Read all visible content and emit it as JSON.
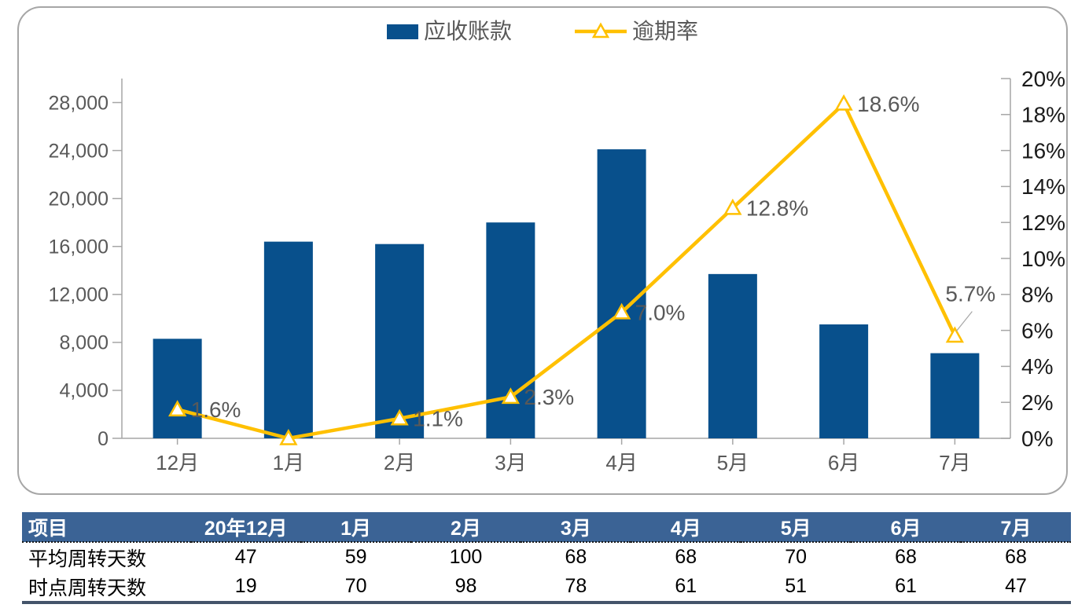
{
  "legend": {
    "bar_label": "应收账款",
    "line_label": "逾期率"
  },
  "chart_data": {
    "type": "combo",
    "title": "",
    "categories": [
      "12月",
      "1月",
      "2月",
      "3月",
      "4月",
      "5月",
      "6月",
      "7月"
    ],
    "series": [
      {
        "name": "应收账款",
        "type": "bar",
        "axis": "left",
        "values": [
          8300,
          16400,
          16200,
          18000,
          24100,
          13700,
          9500,
          7100
        ]
      },
      {
        "name": "逾期率",
        "type": "line",
        "axis": "right",
        "values": [
          1.6,
          0.0,
          1.1,
          2.3,
          7.0,
          12.8,
          18.6,
          5.7
        ],
        "point_labels": [
          "1.6%",
          "",
          "1.1%",
          "2.3%",
          "7.0%",
          "12.8%",
          "18.6%",
          "5.7%"
        ],
        "label_side": [
          "right",
          "none",
          "right",
          "right",
          "right",
          "right",
          "right",
          "above-leader"
        ]
      }
    ],
    "left_axis": {
      "min": 0,
      "max": 30000,
      "tick_step": 4000,
      "tick_labels": [
        "0",
        "4,000",
        "8,000",
        "12,000",
        "16,000",
        "20,000",
        "24,000",
        "28,000"
      ]
    },
    "right_axis": {
      "min": 0,
      "max": 20,
      "tick_step": 2,
      "tick_labels": [
        "0%",
        "2%",
        "4%",
        "6%",
        "8%",
        "10%",
        "12%",
        "14%",
        "16%",
        "18%",
        "20%"
      ]
    },
    "legend_position": "top-center",
    "grid": "off",
    "colors": {
      "bar": "#08508C",
      "line": "#FFC000",
      "marker_fill": "#FFFFFF",
      "axis": "#A6A6A6",
      "label": "#595959",
      "right_axis_text": "#1A1A1A",
      "leader": "#A6A6A6"
    }
  },
  "table": {
    "columns": [
      "项目",
      "20年12月",
      "1月",
      "2月",
      "3月",
      "4月",
      "5月",
      "6月",
      "7月"
    ],
    "rows": [
      {
        "label": "平均周转天数",
        "values": [
          "47",
          "59",
          "100",
          "68",
          "68",
          "70",
          "68",
          "68"
        ]
      },
      {
        "label": "时点周转天数",
        "values": [
          "19",
          "70",
          "98",
          "78",
          "61",
          "51",
          "61",
          "47"
        ]
      }
    ],
    "header_bg": "#3B6395",
    "header_text_color": "#FFFFFF",
    "bottom_border_color": "#44546A"
  }
}
